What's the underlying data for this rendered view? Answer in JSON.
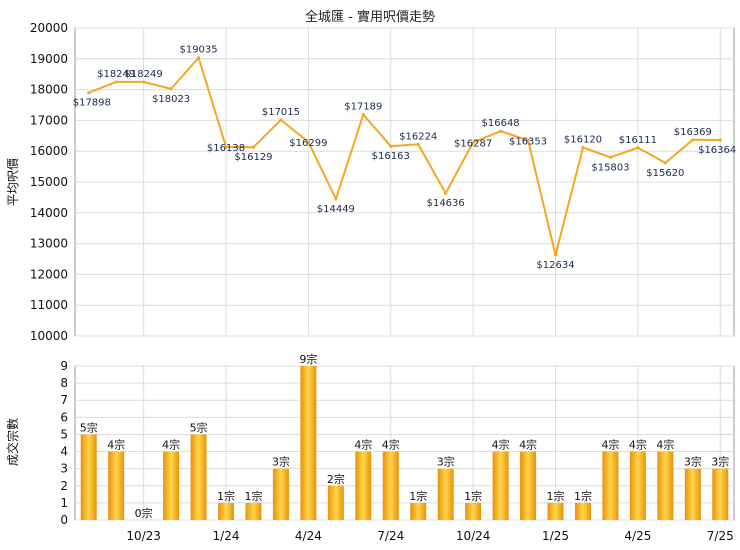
{
  "chart_data": [
    {
      "type": "line",
      "title": "全城匯 - 實用呎價走勢",
      "ylabel": "平均呎價",
      "ylim": [
        10000,
        20000
      ],
      "yticks": [
        10000,
        11000,
        12000,
        13000,
        14000,
        15000,
        16000,
        17000,
        18000,
        19000,
        20000
      ],
      "x_tick_labels": [
        "10/23",
        "1/24",
        "4/24",
        "7/24",
        "10/24",
        "1/25",
        "4/25",
        "7/25"
      ],
      "values": [
        17898,
        18249,
        18249,
        18023,
        19035,
        16138,
        16129,
        17015,
        16299,
        14449,
        17189,
        16163,
        16224,
        14636,
        16287,
        16648,
        16353,
        12634,
        16120,
        15803,
        16111,
        15620,
        16369,
        16364
      ],
      "labels": [
        "$17898",
        "$18249",
        "$18249",
        "$18023",
        "$19035",
        "$16138",
        "$16129",
        "$17015",
        "$16299",
        "$14449",
        "$17189",
        "$16163",
        "$16224",
        "$14636",
        "$16287",
        "$16648",
        "$16353",
        "$12634",
        "$16120",
        "$15803",
        "$16111",
        "$15620",
        "$16369",
        "$16364"
      ],
      "grid": true,
      "line_color": "#f5a623"
    },
    {
      "type": "bar",
      "ylabel": "成交宗數",
      "ylim": [
        0,
        9
      ],
      "yticks": [
        0,
        1,
        2,
        3,
        4,
        5,
        6,
        7,
        8,
        9
      ],
      "x_tick_labels": [
        "10/23",
        "1/24",
        "4/24",
        "7/24",
        "10/24",
        "1/25",
        "4/25",
        "7/25"
      ],
      "values": [
        5,
        4,
        0,
        4,
        5,
        1,
        1,
        3,
        9,
        2,
        4,
        4,
        1,
        3,
        1,
        4,
        4,
        1,
        1,
        4,
        4,
        4,
        3,
        3
      ],
      "labels": [
        "5宗",
        "4宗",
        "0宗",
        "4宗",
        "5宗",
        "1宗",
        "1宗",
        "3宗",
        "9宗",
        "2宗",
        "4宗",
        "4宗",
        "1宗",
        "3宗",
        "1宗",
        "4宗",
        "4宗",
        "1宗",
        "1宗",
        "4宗",
        "4宗",
        "4宗",
        "3宗",
        "3宗"
      ],
      "grid": true,
      "bar_color": "#f5a623"
    }
  ]
}
